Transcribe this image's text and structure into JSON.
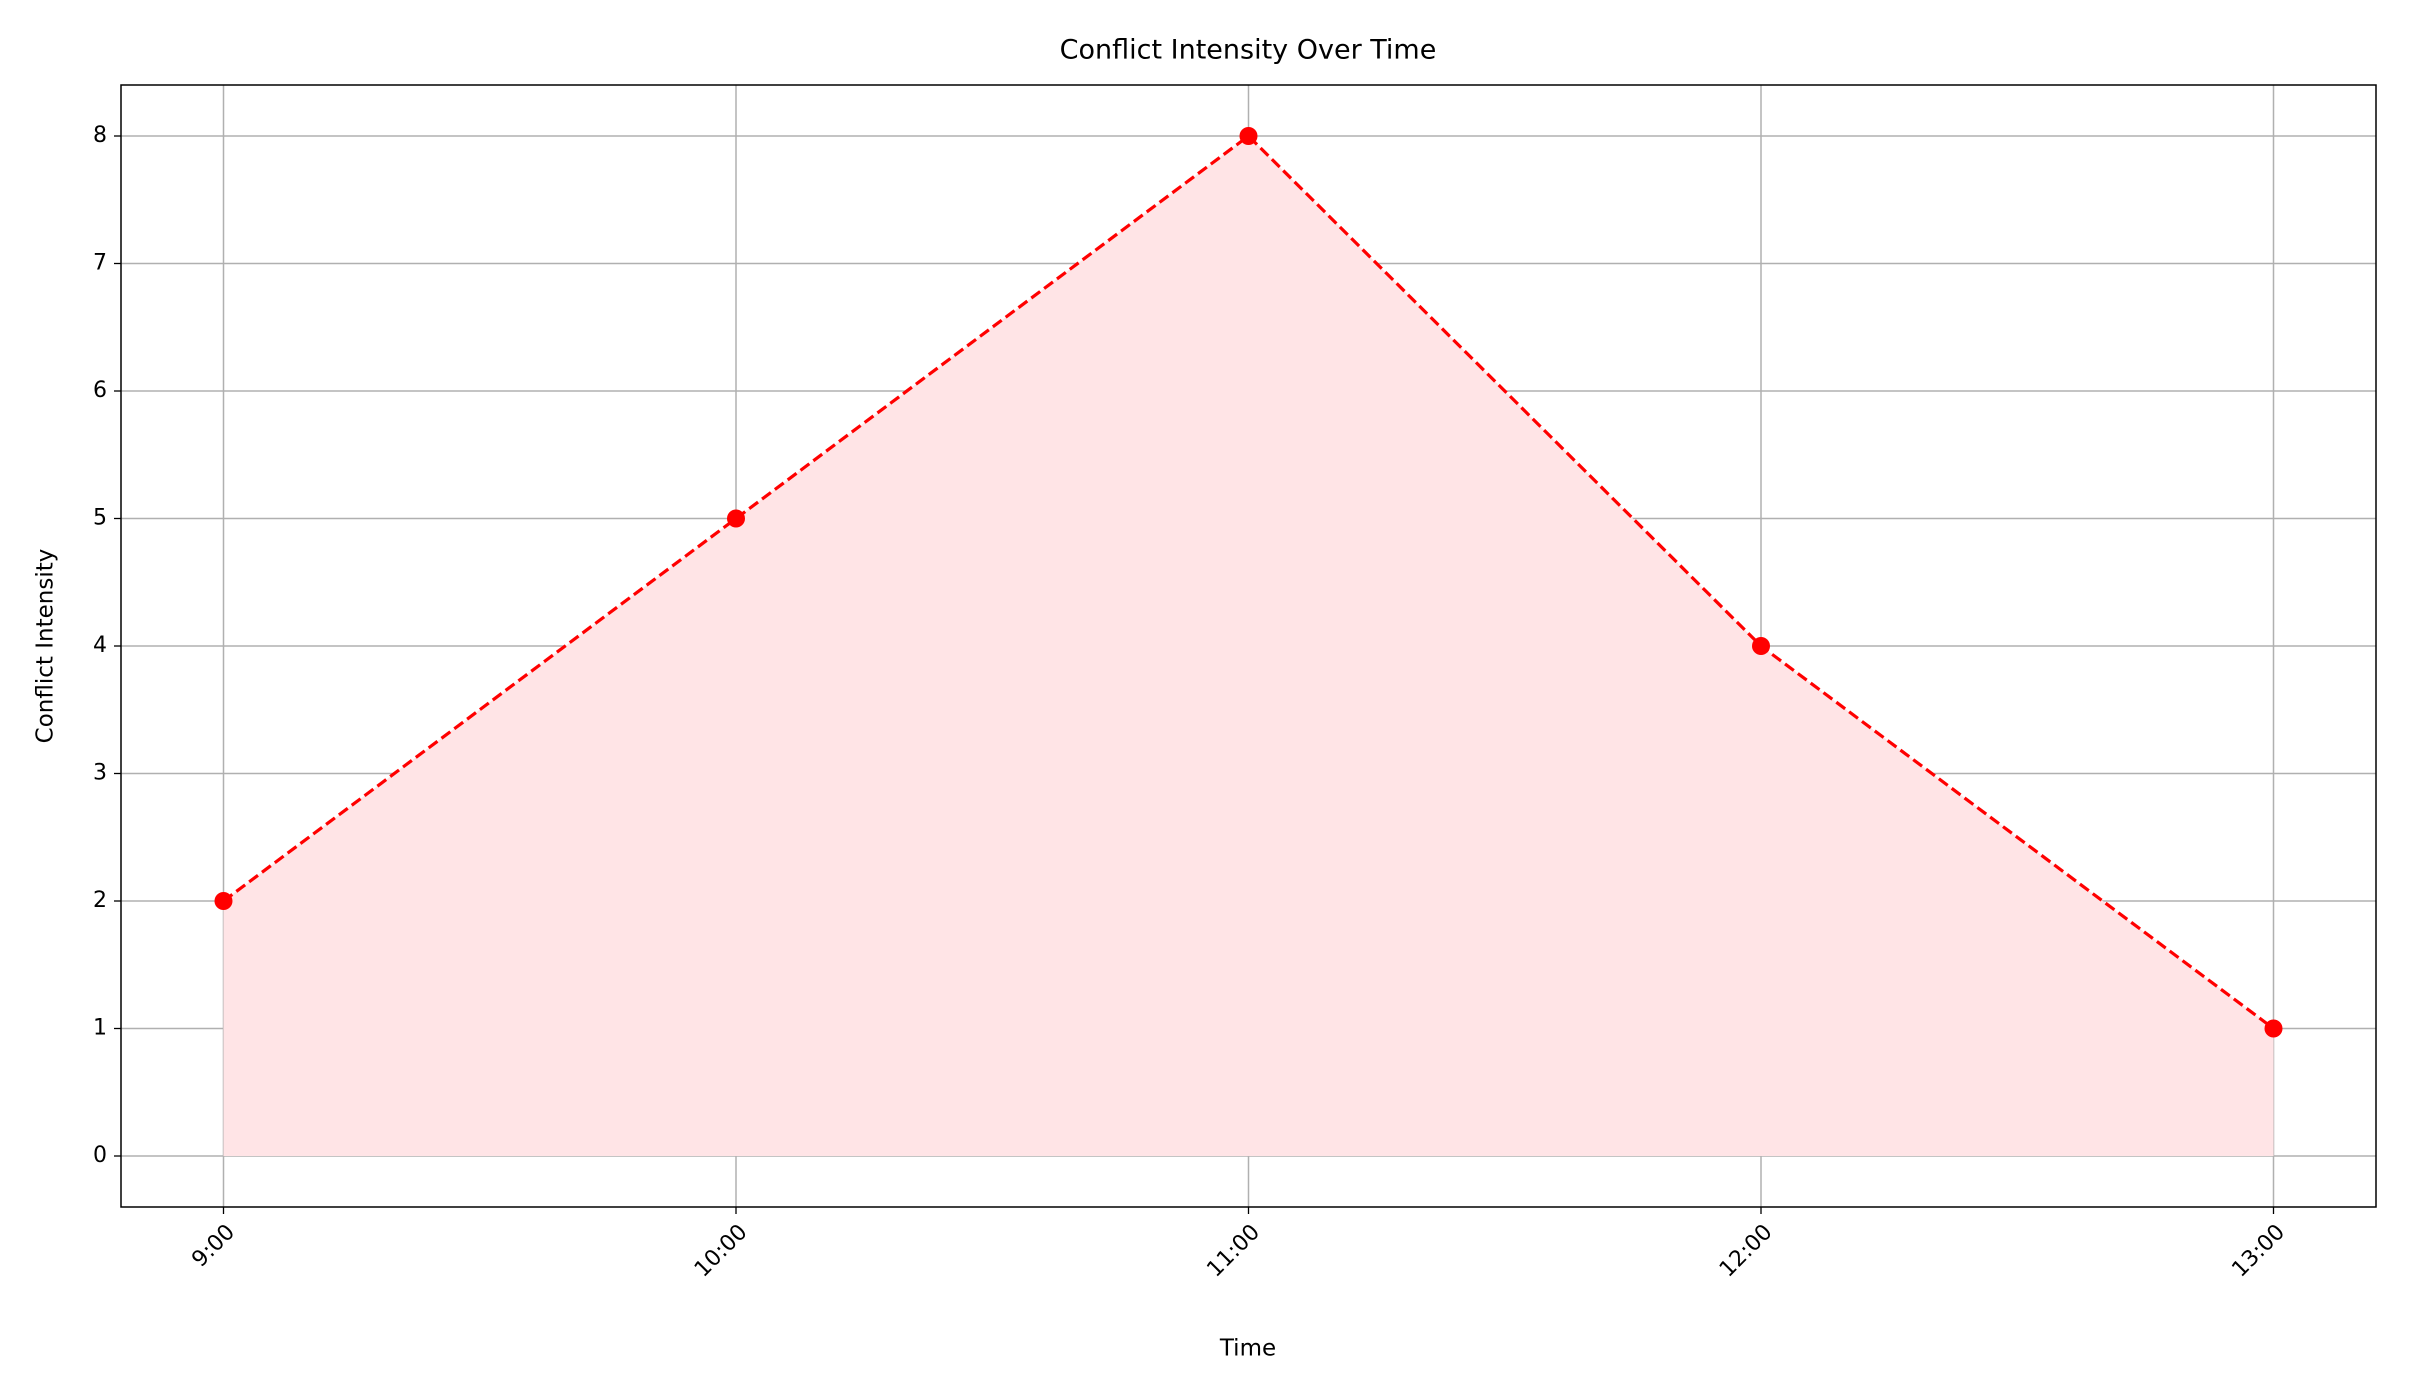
{
  "chart_data": {
    "type": "line",
    "title": "Conflict Intensity Over Time",
    "x_label": "Time",
    "y_label": "Conflict Intensity",
    "categories": [
      "9:00",
      "10:00",
      "11:00",
      "12:00",
      "13:00"
    ],
    "series": [
      {
        "name": "Conflict Intensity",
        "color": "red",
        "values": [
          2,
          5,
          8,
          4,
          1
        ]
      }
    ],
    "line_style": "dashed",
    "marker": "circle",
    "fill_below": true,
    "fill_color": "#ffe4e6",
    "ylim": [
      -0.4,
      8.4
    ],
    "yticks": [
      0,
      1,
      2,
      3,
      4,
      5,
      6,
      7,
      8
    ],
    "grid": true
  }
}
